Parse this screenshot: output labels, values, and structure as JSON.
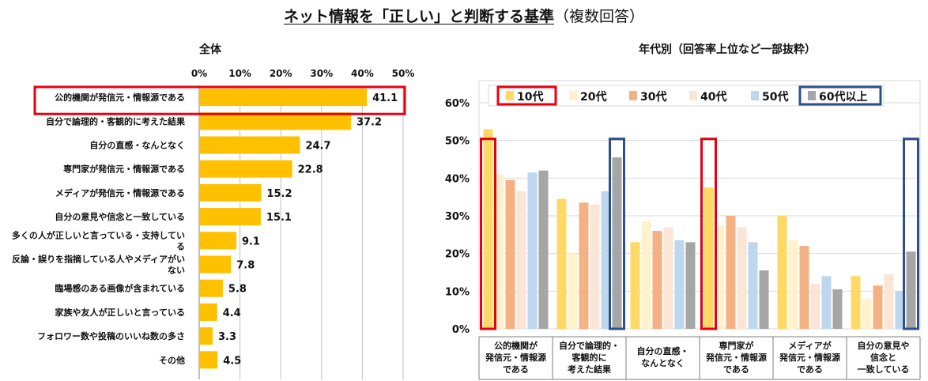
{
  "title": {
    "main": "ネット情報を「正しい」と判断する基準",
    "sub": "（複数回答）"
  },
  "colors": {
    "bar_left": "#FFC000",
    "highlight_red": "#E60012",
    "highlight_blue": "#2E4E8C",
    "gridline": "#BFBFBF",
    "series": [
      "#FFD966",
      "#FFF2CC",
      "#F4B183",
      "#FBE5D6",
      "#BDD7EE",
      "#A6A6A6"
    ]
  },
  "chart_data": [
    {
      "type": "bar",
      "orientation": "horizontal",
      "title": "全体",
      "categories": [
        [
          "公的機関が発信元・情報源である"
        ],
        [
          "自分で論理的・客観的に考えた結果"
        ],
        [
          "自分の直感・なんとなく"
        ],
        [
          "専門家が発信元・情報源である"
        ],
        [
          "メディアが発信元・情報源である"
        ],
        [
          "自分の意見や信念と一致している"
        ],
        [
          "多くの人が正しいと言っている・支持してい",
          "る"
        ],
        [
          "反論・誤りを指摘している人やメディアがい",
          "ない"
        ],
        [
          "臨場感のある画像が含まれている"
        ],
        [
          "家族や友人が正しいと言っている"
        ],
        [
          "フォロワー数や投稿のいいね数の多さ"
        ],
        [
          "その他"
        ]
      ],
      "values": [
        41.1,
        37.2,
        24.7,
        22.8,
        15.2,
        15.1,
        9.1,
        7.8,
        5.8,
        4.4,
        3.3,
        4.5
      ],
      "value_labels": [
        "41.1",
        "37.2",
        "24.7",
        "22.8",
        "15.2",
        "15.1",
        "9.1",
        "7.8",
        "5.8",
        "4.4",
        "3.3",
        "4.5"
      ],
      "xlim": [
        0,
        50
      ],
      "x_ticks": [
        "0%",
        "10%",
        "20%",
        "30%",
        "40%",
        "50%"
      ],
      "highlighted_index": 0
    },
    {
      "type": "bar",
      "orientation": "vertical",
      "title": "年代別（回答率上位など一部抜粋）",
      "categories": [
        [
          "公的機関が",
          "発信元・情報源",
          "である"
        ],
        [
          "自分で論理的・",
          "客観的に",
          "考えた結果"
        ],
        [
          "自分の直感・",
          "なんとなく"
        ],
        [
          "専門家が",
          "発信元・情報源",
          "である"
        ],
        [
          "メディアが",
          "発信元・情報源",
          "である"
        ],
        [
          "自分の意見や",
          "信念と",
          "一致している"
        ]
      ],
      "series": [
        {
          "name": "10代",
          "values": [
            53,
            34.5,
            23,
            37.5,
            30,
            14
          ]
        },
        {
          "name": "20代",
          "values": [
            41,
            20,
            28.5,
            27.5,
            23.5,
            8
          ]
        },
        {
          "name": "30代",
          "values": [
            39.5,
            33.5,
            26,
            30,
            22,
            11.5
          ]
        },
        {
          "name": "40代",
          "values": [
            36.5,
            33,
            27,
            27,
            12,
            14.5
          ]
        },
        {
          "name": "50代",
          "values": [
            41.5,
            36.5,
            23.5,
            23,
            14,
            10
          ]
        },
        {
          "name": "60代以上",
          "values": [
            42,
            45.5,
            23,
            15.5,
            10.5,
            20.5
          ]
        }
      ],
      "ylim": [
        0,
        60
      ],
      "y_ticks": [
        "0%",
        "10%",
        "20%",
        "30%",
        "40%",
        "50%",
        "60%"
      ],
      "grid": true,
      "legend_position": "top",
      "highlighted_series": {
        "10代": [
          0,
          3
        ],
        "60代以上": [
          1,
          5
        ]
      }
    }
  ]
}
